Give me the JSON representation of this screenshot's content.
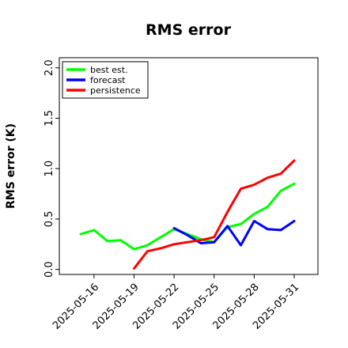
{
  "chart_data": {
    "type": "line",
    "title": "RMS error",
    "xlabel": "",
    "ylabel": "RMS error (K)",
    "ylim": [
      -0.05,
      2.1
    ],
    "yticks": [
      0.0,
      0.5,
      1.0,
      1.5,
      2.0
    ],
    "ytick_labels": [
      "0.0",
      "0.5",
      "1.0",
      "1.5",
      "2.0"
    ],
    "x": [
      "2025-05-15",
      "2025-05-16",
      "2025-05-17",
      "2025-05-18",
      "2025-05-19",
      "2025-05-20",
      "2025-05-21",
      "2025-05-22",
      "2025-05-23",
      "2025-05-24",
      "2025-05-25",
      "2025-05-26",
      "2025-05-27",
      "2025-05-28",
      "2025-05-29",
      "2025-05-30",
      "2025-05-31"
    ],
    "xticks": [
      "2025-05-16",
      "2025-05-19",
      "2025-05-22",
      "2025-05-25",
      "2025-05-28",
      "2025-05-31"
    ],
    "xtick_colors": [
      "#000000",
      "#000000",
      "#008000",
      "#000000",
      "#000000",
      "#000000"
    ],
    "grid": false,
    "legend_position": "top-left",
    "series": [
      {
        "name": "best est.",
        "color": "#00ff00",
        "values": [
          0.35,
          0.39,
          0.28,
          0.29,
          0.2,
          0.24,
          0.32,
          0.4,
          0.35,
          0.3,
          0.27,
          0.42,
          0.45,
          0.55,
          0.62,
          0.78,
          0.85
        ]
      },
      {
        "name": "forecast",
        "color": "#0000ff",
        "values": [
          null,
          null,
          null,
          null,
          null,
          null,
          null,
          0.41,
          0.34,
          0.26,
          0.27,
          0.43,
          0.24,
          0.48,
          0.4,
          0.39,
          0.48
        ]
      },
      {
        "name": "persistence",
        "color": "#ff0000",
        "values": [
          null,
          null,
          null,
          null,
          0.01,
          0.18,
          0.21,
          0.25,
          0.27,
          0.29,
          0.32,
          0.57,
          0.8,
          0.84,
          0.91,
          0.95,
          1.08
        ]
      }
    ]
  }
}
